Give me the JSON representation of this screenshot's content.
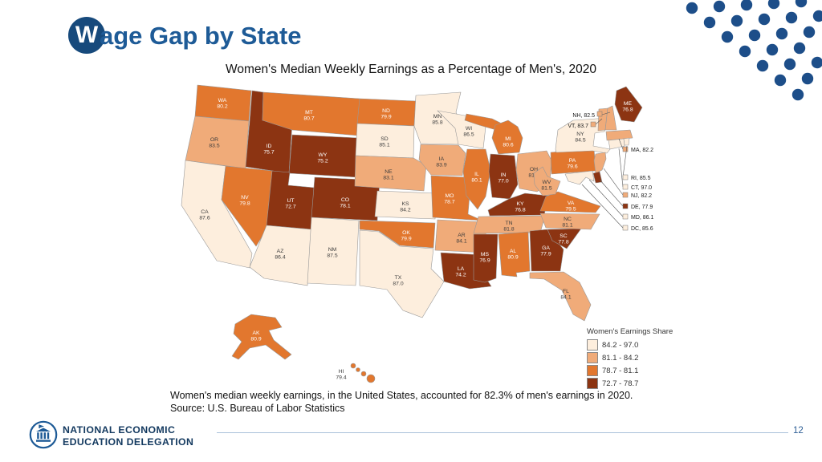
{
  "slide": {
    "badge_letter": "W",
    "title_rest": "age Gap by State",
    "title_full": "Wage Gap by State",
    "subtitle": "Women's Median Weekly Earnings as a Percentage of Men's, 2020",
    "caption_line1": "Women's median weekly earnings, in the United States, accounted for 82.3% of men's earnings in 2020.",
    "caption_line2": "Source: U.S. Bureau of Labor Statistics",
    "page_number": "12"
  },
  "footer": {
    "org_line1": "NATIONAL ECONOMIC",
    "org_line2": "EDUCATION DELEGATION"
  },
  "colors": {
    "title_blue": "#1e5b97",
    "badge_navy": "#174a7c",
    "dot_blue": "#1d4e89",
    "footer_line_blue": "#a9c1da"
  },
  "chart_data": {
    "type": "heatmap",
    "subtype": "choropleth-us-states",
    "title": "Women's Median Weekly Earnings as a Percentage of Men's, 2020",
    "us_average_pct": 82.3,
    "legend": {
      "title": "Women's Earnings Share",
      "breaks": [
        84.2,
        81.1,
        78.7
      ],
      "categories": [
        {
          "label": "84.2 - 97.0",
          "color": "#fdeedd"
        },
        {
          "label": "81.1 - 84.2",
          "color": "#f0ab79"
        },
        {
          "label": "78.7 - 81.1",
          "color": "#e2772e"
        },
        {
          "label": "72.7 - 78.7",
          "color": "#8c3412"
        }
      ]
    },
    "states": {
      "WA": 80.2,
      "OR": 83.5,
      "CA": 87.6,
      "ID": 75.7,
      "NV": 79.8,
      "MT": 80.7,
      "WY": 75.2,
      "UT": 72.7,
      "CO": 78.1,
      "AZ": 86.4,
      "NM": 87.5,
      "ND": 79.9,
      "SD": 85.1,
      "NE": 83.1,
      "KS": 84.2,
      "OK": 79.9,
      "TX": 87.0,
      "MN": 85.8,
      "IA": 83.9,
      "MO": 78.7,
      "AR": 84.1,
      "LA": 74.2,
      "WI": 86.5,
      "IL": 80.1,
      "IN": 77.0,
      "MI": 80.6,
      "OH": 81.9,
      "KY": 76.8,
      "TN": 81.8,
      "MS": 76.9,
      "AL": 80.9,
      "GA": 77.9,
      "FL": 84.1,
      "SC": 77.8,
      "NC": 81.1,
      "VA": 79.5,
      "WV": 81.5,
      "PA": 79.6,
      "NY": 84.5,
      "ME": 76.8,
      "VT": 83.7,
      "NH": 82.5,
      "MA": 82.2,
      "RI": 85.5,
      "CT": 97.0,
      "NJ": 82.2,
      "DE": 77.9,
      "MD": 86.1,
      "DC": 85.6,
      "AK": 80.9,
      "HI": 79.4
    }
  }
}
